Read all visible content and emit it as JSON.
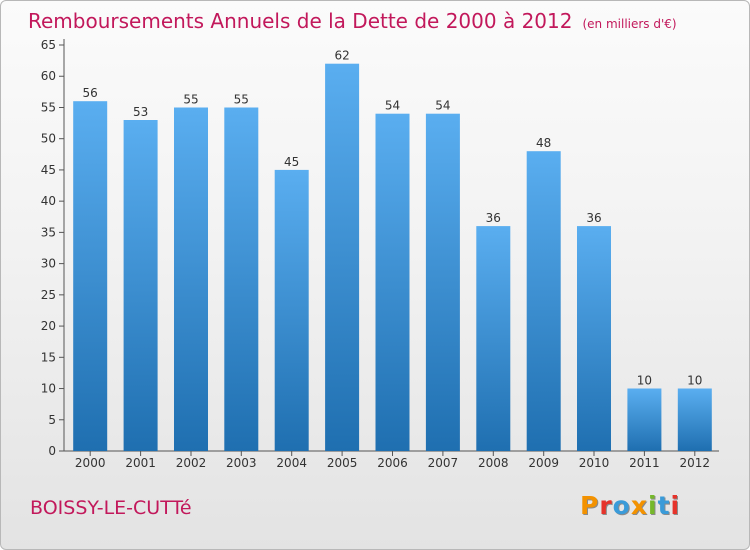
{
  "header": {
    "title": "Remboursements Annuels de la Dette de 2000 à 2012",
    "unit": "(en milliers d'€)"
  },
  "footer": {
    "commune": "BOISSY-LE-CUTTé",
    "logo": "Proxiti"
  },
  "colors": {
    "title": "#c2185b",
    "bar_light": "#5aaef0",
    "bar_dark": "#1f6fb0",
    "logo_letters": [
      "#f39200",
      "#e6332a",
      "#3a9bd9",
      "#f39200",
      "#76b82a",
      "#3a9bd9",
      "#e6332a"
    ]
  },
  "chart_data": {
    "type": "bar",
    "title": "Remboursements Annuels de la Dette de 2000 à 2012",
    "categories": [
      "2000",
      "2001",
      "2002",
      "2003",
      "2004",
      "2005",
      "2006",
      "2007",
      "2008",
      "2009",
      "2010",
      "2011",
      "2012"
    ],
    "values": [
      56,
      53,
      55,
      55,
      45,
      62,
      54,
      54,
      36,
      48,
      36,
      10,
      10
    ],
    "ylim": [
      0,
      65
    ],
    "yticks": [
      0,
      5,
      10,
      15,
      20,
      25,
      30,
      35,
      40,
      45,
      50,
      55,
      60,
      65
    ],
    "xlabel": "",
    "ylabel": "",
    "grid": false,
    "data_labels": true
  }
}
